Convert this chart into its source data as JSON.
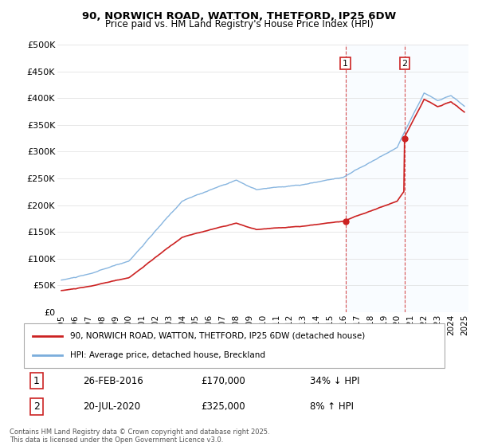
{
  "title_line1": "90, NORWICH ROAD, WATTON, THETFORD, IP25 6DW",
  "title_line2": "Price paid vs. HM Land Registry's House Price Index (HPI)",
  "ytick_labels": [
    "£0",
    "£50K",
    "£100K",
    "£150K",
    "£200K",
    "£250K",
    "£300K",
    "£350K",
    "£400K",
    "£450K",
    "£500K"
  ],
  "yticks": [
    0,
    50000,
    100000,
    150000,
    200000,
    250000,
    300000,
    350000,
    400000,
    450000,
    500000
  ],
  "hpi_color": "#7aaddc",
  "price_color": "#cc2222",
  "sale1_date": "26-FEB-2016",
  "sale1_price": 170000,
  "sale1_year": 2016.15,
  "sale2_date": "20-JUL-2020",
  "sale2_price": 325000,
  "sale2_year": 2020.55,
  "sale1_label": "34% ↓ HPI",
  "sale2_label": "8% ↑ HPI",
  "legend_label1": "90, NORWICH ROAD, WATTON, THETFORD, IP25 6DW (detached house)",
  "legend_label2": "HPI: Average price, detached house, Breckland",
  "footnote": "Contains HM Land Registry data © Crown copyright and database right 2025.\nThis data is licensed under the Open Government Licence v3.0.",
  "x_start_year": 1995,
  "x_end_year": 2025,
  "ylim": [
    0,
    500000
  ],
  "shade_color": "#ddeeff"
}
